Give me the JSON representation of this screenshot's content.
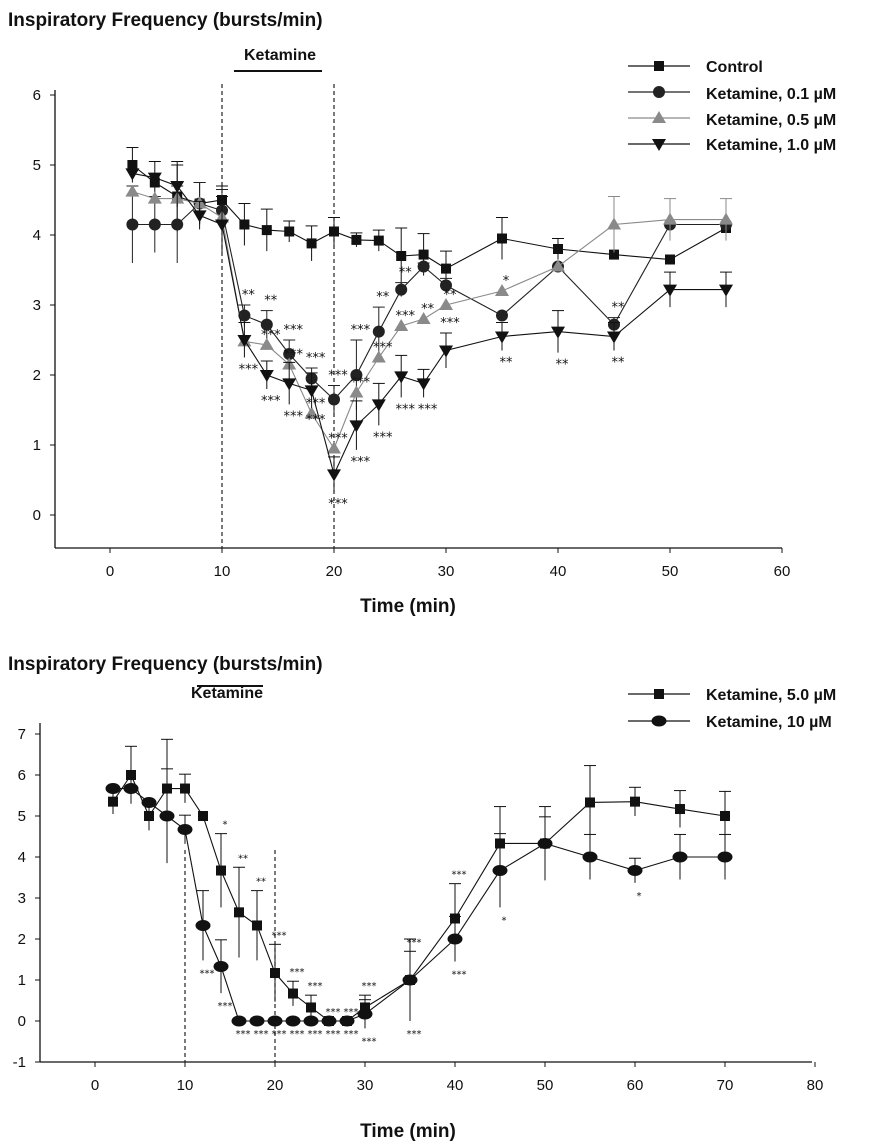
{
  "chart_data": [
    {
      "type": "line",
      "title": "Inspiratory Frequency (bursts/min)",
      "xlabel": "Time (min)",
      "ylabel": "",
      "xlim": [
        -5,
        60
      ],
      "ylim": [
        -0.5,
        6
      ],
      "x_ticks": [
        "0",
        "10",
        "20",
        "30",
        "40",
        "50",
        "60"
      ],
      "y_ticks": [
        "0",
        "1",
        "2",
        "3",
        "4",
        "5",
        "6"
      ],
      "treatment": {
        "label": "Ketamine",
        "start": 10,
        "end": 20
      },
      "legend_position": "top-right",
      "series": [
        {
          "name": "Control",
          "marker": "square",
          "color": "#111111",
          "x": [
            2,
            4,
            6,
            8,
            10,
            12,
            14,
            16,
            18,
            20,
            22,
            24,
            26,
            28,
            30,
            35,
            40,
            45,
            50,
            55
          ],
          "y": [
            5.0,
            4.75,
            4.55,
            4.45,
            4.5,
            4.15,
            4.07,
            4.05,
            3.88,
            4.05,
            3.93,
            3.92,
            3.7,
            3.72,
            3.52,
            3.95,
            3.8,
            3.72,
            3.65,
            4.1
          ],
          "err": [
            0.25,
            0.3,
            0.5,
            0.3,
            0.2,
            0.3,
            0.3,
            0.15,
            0.25,
            0.2,
            0.1,
            0.15,
            0.4,
            0.3,
            0.25,
            0.3,
            0.15,
            0.0,
            0.0,
            0.0
          ]
        },
        {
          "name": "Ketamine, 0.1 µM",
          "marker": "circle",
          "color": "#222222",
          "x": [
            2,
            4,
            6,
            8,
            10,
            12,
            14,
            16,
            18,
            20,
            22,
            24,
            26,
            28,
            30,
            35,
            40,
            45,
            50,
            55
          ],
          "y": [
            4.15,
            4.15,
            4.15,
            4.45,
            4.35,
            2.85,
            2.72,
            2.3,
            1.95,
            1.65,
            2.0,
            2.62,
            3.22,
            3.55,
            3.28,
            2.85,
            3.55,
            2.72,
            4.15,
            4.15
          ],
          "err": [
            0.55,
            0.4,
            0.55,
            0.3,
            0.3,
            0.15,
            0.2,
            0.2,
            0.15,
            0.2,
            0.5,
            0.35,
            0.1,
            0.05,
            0.1,
            0.0,
            0.0,
            0.1,
            0.0,
            0.0
          ],
          "sig": [
            null,
            null,
            null,
            null,
            null,
            "**",
            "**",
            "***",
            "***",
            "***",
            "***",
            "**",
            "**",
            null,
            null,
            null,
            null,
            "**",
            null,
            null
          ],
          "sig_pos": [
            0,
            0,
            0,
            0,
            0,
            1,
            1,
            1,
            1,
            1,
            1,
            1,
            1,
            0,
            0,
            0,
            0,
            1,
            0,
            0
          ]
        },
        {
          "name": "Ketamine, 0.5 µM",
          "marker": "triangle-up",
          "color": "#8a8a8a",
          "x": [
            2,
            4,
            6,
            8,
            10,
            12,
            14,
            16,
            18,
            20,
            22,
            24,
            26,
            28,
            30,
            35,
            40,
            45,
            50,
            55
          ],
          "y": [
            4.62,
            4.52,
            4.52,
            4.45,
            4.25,
            2.48,
            2.43,
            2.15,
            1.45,
            0.95,
            1.75,
            2.25,
            2.7,
            2.8,
            3.0,
            3.2,
            3.55,
            4.15,
            4.22,
            4.22
          ],
          "err": [
            0.0,
            0.0,
            0.0,
            0.0,
            0.0,
            0.0,
            0.0,
            0.0,
            0.0,
            0.0,
            0.0,
            0.0,
            0.0,
            0.0,
            0.0,
            0.0,
            0.0,
            0.4,
            0.3,
            0.3
          ],
          "sig": [
            null,
            null,
            null,
            null,
            null,
            null,
            "***",
            "***",
            "***",
            "***",
            "***",
            "***",
            "***",
            "**",
            "**",
            "*",
            null,
            null,
            null,
            null
          ],
          "sig_pos": [
            0,
            0,
            0,
            0,
            0,
            0,
            1,
            1,
            1,
            1,
            1,
            1,
            1,
            1,
            1,
            1,
            0,
            0,
            0,
            0
          ]
        },
        {
          "name": "Ketamine, 1.0 µM",
          "marker": "triangle-down",
          "color": "#111111",
          "x": [
            2,
            4,
            6,
            8,
            10,
            12,
            14,
            16,
            18,
            20,
            22,
            24,
            26,
            28,
            30,
            35,
            40,
            45,
            50,
            55
          ],
          "y": [
            4.88,
            4.82,
            4.7,
            4.28,
            4.15,
            2.5,
            2.0,
            1.88,
            1.78,
            0.58,
            1.28,
            1.58,
            1.98,
            1.88,
            2.35,
            2.55,
            2.62,
            2.55,
            3.22,
            3.22
          ],
          "err": [
            0.0,
            0.0,
            0.3,
            0.2,
            0.4,
            0.25,
            0.2,
            0.3,
            0.25,
            0.25,
            0.35,
            0.3,
            0.3,
            0.2,
            0.25,
            0.2,
            0.3,
            0.2,
            0.25,
            0.25
          ],
          "sig": [
            null,
            null,
            null,
            null,
            null,
            "***",
            "***",
            "***",
            "***",
            "***",
            "***",
            "***",
            "***",
            "***",
            "***",
            "**",
            "**",
            "**",
            null,
            null
          ],
          "sig_pos": [
            0,
            0,
            0,
            0,
            0,
            -1,
            -1,
            -1,
            -1,
            -1,
            -1,
            -1,
            -1,
            -1,
            1,
            -1,
            -1,
            -1,
            0,
            0
          ]
        }
      ]
    },
    {
      "type": "line",
      "title": "Inspiratory Frequency (bursts/min)",
      "xlabel": "Time (min)",
      "ylabel": "",
      "xlim": [
        -10,
        80
      ],
      "ylim": [
        -1,
        7.5
      ],
      "x_ticks": [
        "0",
        "10",
        "20",
        "30",
        "40",
        "50",
        "60",
        "70",
        "80"
      ],
      "y_ticks": [
        "-1",
        "0",
        "1",
        "2",
        "3",
        "4",
        "5",
        "6",
        "7"
      ],
      "treatment": {
        "label": "Ketamine",
        "start": 10,
        "end": 20
      },
      "legend_position": "top-right",
      "series": [
        {
          "name": "Ketamine, 5.0 µM",
          "marker": "square",
          "color": "#111111",
          "x": [
            2,
            4,
            6,
            8,
            10,
            12,
            14,
            16,
            18,
            20,
            22,
            24,
            26,
            28,
            30,
            35,
            40,
            45,
            50,
            55,
            60,
            65,
            70
          ],
          "y": [
            5.35,
            6.0,
            5.0,
            5.67,
            5.67,
            5.0,
            3.67,
            2.65,
            2.33,
            1.17,
            0.67,
            0.33,
            0.0,
            0.0,
            0.33,
            1.0,
            2.5,
            4.33,
            4.33,
            5.33,
            5.35,
            5.17,
            5.0
          ],
          "err": [
            0.3,
            0.7,
            0.35,
            1.2,
            0.35,
            0.0,
            0.9,
            1.1,
            0.85,
            0.7,
            0.3,
            0.3,
            0.0,
            0.0,
            0.3,
            0.7,
            0.85,
            0.9,
            0.9,
            0.9,
            0.35,
            0.45,
            0.6
          ],
          "sig": [
            null,
            null,
            null,
            null,
            null,
            null,
            "*",
            "**",
            "**",
            "***",
            "***",
            "***",
            "***",
            "***",
            "***",
            "***",
            "***",
            null,
            null,
            null,
            null,
            null,
            null
          ],
          "sig_pos": [
            0,
            0,
            0,
            0,
            0,
            0,
            1,
            1,
            1,
            1,
            1,
            1,
            1,
            1,
            1,
            1,
            1,
            0,
            0,
            0,
            0,
            0,
            0
          ]
        },
        {
          "name": "Ketamine, 10 µM",
          "marker": "ellipse",
          "color": "#111111",
          "x": [
            2,
            4,
            6,
            8,
            10,
            12,
            14,
            16,
            18,
            20,
            22,
            24,
            26,
            28,
            30,
            35,
            40,
            45,
            50,
            55,
            60,
            65,
            70
          ],
          "y": [
            5.67,
            5.67,
            5.33,
            5.0,
            4.67,
            2.33,
            1.33,
            0.0,
            0.0,
            0.0,
            0.0,
            0.0,
            0.0,
            0.0,
            0.17,
            1.0,
            2.0,
            3.67,
            4.33,
            4.0,
            3.67,
            4.0,
            4.0
          ],
          "err": [
            0.0,
            0.0,
            0.0,
            1.15,
            0.35,
            0.85,
            0.65,
            0.0,
            0.0,
            0.0,
            0.0,
            0.0,
            0.0,
            0.0,
            0.35,
            1.0,
            0.55,
            0.9,
            0.65,
            0.55,
            0.3,
            0.55,
            0.55
          ],
          "sig": [
            null,
            null,
            null,
            null,
            null,
            "***",
            "***",
            "***",
            "***",
            "***",
            "***",
            "***",
            "***",
            "***",
            "***",
            "***",
            "***",
            "*",
            null,
            null,
            "*",
            null,
            null
          ],
          "sig_pos": [
            0,
            0,
            0,
            0,
            0,
            -1,
            -1,
            -1,
            -1,
            -1,
            -1,
            -1,
            -1,
            -1,
            -1,
            -1,
            -1,
            -1,
            0,
            0,
            -1,
            0,
            0
          ]
        }
      ]
    }
  ]
}
